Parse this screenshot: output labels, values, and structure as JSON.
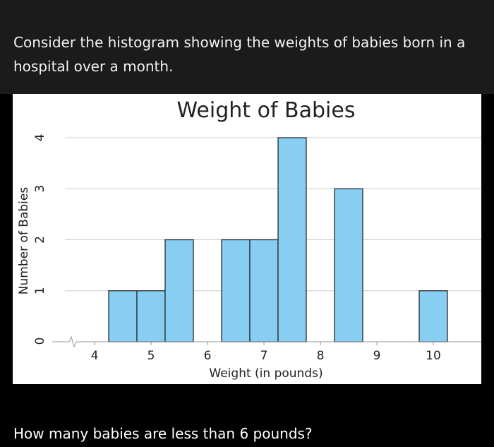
{
  "question": {
    "prompt": "Consider the histogram showing the weights of babies born in a hospital over a month.",
    "followup": "How many babies are less than 6 pounds?"
  },
  "colors": {
    "background": "#1b1b1b",
    "bar_fill": "#87cef2",
    "bar_stroke": "#2a2a2a",
    "grid": "#cccccc"
  },
  "chart_data": {
    "type": "bar",
    "title": "Weight of Babies",
    "xlabel": "Weight (in pounds)",
    "ylabel": "Number of Babies",
    "xlim": [
      3.5,
      10.5
    ],
    "ylim": [
      0,
      4
    ],
    "x_ticks": [
      "4",
      "5",
      "6",
      "7",
      "8",
      "9",
      "10"
    ],
    "y_ticks": [
      "0",
      "1",
      "2",
      "3",
      "4"
    ],
    "x_axis_break": true,
    "grid": true,
    "bin_width": 0.5,
    "bars": [
      {
        "start": 4.25,
        "end": 4.75,
        "count": 1
      },
      {
        "start": 4.75,
        "end": 5.25,
        "count": 1
      },
      {
        "start": 5.25,
        "end": 5.75,
        "count": 2
      },
      {
        "start": 5.75,
        "end": 6.25,
        "count": 0
      },
      {
        "start": 6.25,
        "end": 6.75,
        "count": 2
      },
      {
        "start": 6.75,
        "end": 7.25,
        "count": 2
      },
      {
        "start": 7.25,
        "end": 7.75,
        "count": 4
      },
      {
        "start": 7.75,
        "end": 8.25,
        "count": 0
      },
      {
        "start": 8.25,
        "end": 8.75,
        "count": 3
      },
      {
        "start": 8.75,
        "end": 9.25,
        "count": 0
      },
      {
        "start": 9.25,
        "end": 9.75,
        "count": 0
      },
      {
        "start": 9.75,
        "end": 10.25,
        "count": 1
      }
    ]
  }
}
